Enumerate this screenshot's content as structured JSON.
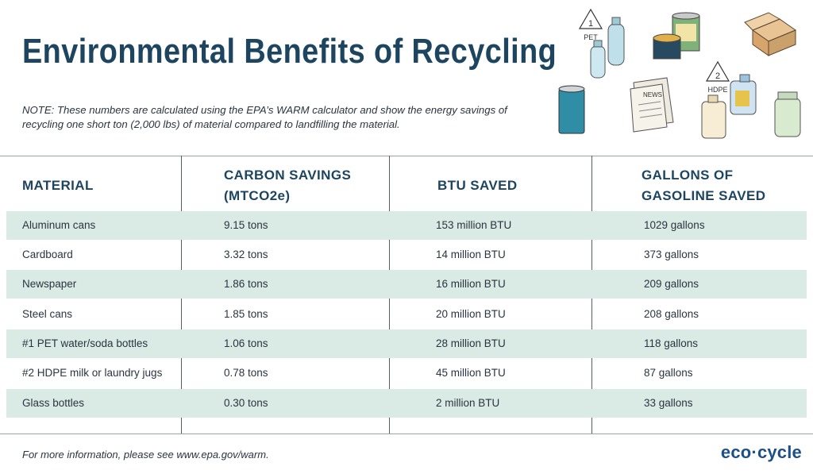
{
  "title": "Environmental Benefits of Recycling",
  "note": "NOTE: These numbers are calculated using the EPA’s WARM calculator and show the energy savings of recycling one short ton (2,000 lbs) of material compared to landfilling the material.",
  "table": {
    "headers": {
      "material": "MATERIAL",
      "carbon_line1": "CARBON SAVINGS",
      "carbon_line2": "(MTCO2e)",
      "btu": "BTU SAVED",
      "gallons_line1": "GALLONS OF",
      "gallons_line2": "GASOLINE SAVED"
    },
    "rows": [
      {
        "material": "Aluminum cans",
        "carbon": "9.15 tons",
        "btu": "153 million BTU",
        "gallons": "1029 gallons"
      },
      {
        "material": "Cardboard",
        "carbon": "3.32 tons",
        "btu": "14 million BTU",
        "gallons": "373 gallons"
      },
      {
        "material": "Newspaper",
        "carbon": "1.86 tons",
        "btu": "16 million BTU",
        "gallons": "209 gallons"
      },
      {
        "material": "Steel cans",
        "carbon": "1.85 tons",
        "btu": "20 million BTU",
        "gallons": "208 gallons"
      },
      {
        "material": "#1 PET water/soda bottles",
        "carbon": "1.06 tons",
        "btu": "28 million BTU",
        "gallons": "118 gallons"
      },
      {
        "material": "#2 HDPE milk or laundry jugs",
        "carbon": "0.78 tons",
        "btu": "45 million BTU",
        "gallons": "87 gallons"
      },
      {
        "material": "Glass bottles",
        "carbon": "0.30 tons",
        "btu": "2 million BTU",
        "gallons": "33 gallons"
      }
    ]
  },
  "illustrations": {
    "pet_code": "1",
    "pet_label": "PET",
    "hdpe_code": "2",
    "hdpe_label": "HDPE",
    "newspaper_mark": "NEWS"
  },
  "footer": "For more information, please see www.epa.gov/warm.",
  "logo": "eco·cycle",
  "colors": {
    "title": "#1d4560",
    "row_shade": "#d9ebe4",
    "logo": "#1d4f8a"
  }
}
